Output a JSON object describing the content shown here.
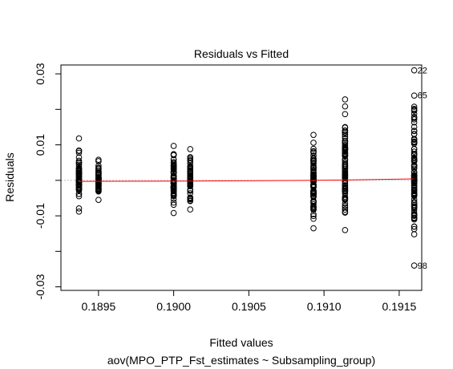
{
  "chart_data": {
    "type": "scatter",
    "title": "Residuals vs Fitted",
    "xlabel": "Fitted values",
    "subtitle": "aov(MPO_PTP_Fst_estimates ~ Subsampling_group)",
    "ylabel": "Residuals",
    "xlim": [
      0.18925,
      0.19165
    ],
    "ylim": [
      -0.031,
      0.0325
    ],
    "xticks": [
      {
        "value": 0.1895,
        "label": "0.1895"
      },
      {
        "value": 0.19,
        "label": "0.1900"
      },
      {
        "value": 0.1905,
        "label": "0.1905"
      },
      {
        "value": 0.191,
        "label": "0.1910"
      },
      {
        "value": 0.1915,
        "label": "0.1915"
      }
    ],
    "yticks": [
      {
        "value": -0.03,
        "label": "-0.03"
      },
      {
        "value": -0.02,
        "label": ""
      },
      {
        "value": -0.01,
        "label": "-0.01"
      },
      {
        "value": 0.0,
        "label": ""
      },
      {
        "value": 0.01,
        "label": "0.01"
      },
      {
        "value": 0.02,
        "label": ""
      },
      {
        "value": 0.03,
        "label": "0.03"
      }
    ],
    "groups": [
      {
        "fitted": 0.18937,
        "min": -0.0088,
        "max": 0.0118,
        "n": 70,
        "seed": 11
      },
      {
        "fitted": 0.1895,
        "min": -0.0055,
        "max": 0.0058,
        "n": 70,
        "seed": 23
      },
      {
        "fitted": 0.19,
        "min": -0.0092,
        "max": 0.0097,
        "n": 80,
        "seed": 37
      },
      {
        "fitted": 0.19011,
        "min": -0.0082,
        "max": 0.0088,
        "n": 80,
        "seed": 41
      },
      {
        "fitted": 0.19093,
        "min": -0.0135,
        "max": 0.0128,
        "n": 90,
        "seed": 53
      },
      {
        "fitted": 0.19114,
        "min": -0.014,
        "max": 0.0228,
        "n": 90,
        "seed": 67
      },
      {
        "fitted": 0.1916,
        "min": -0.024,
        "max": 0.031,
        "n": 100,
        "seed": 79
      }
    ],
    "labeled_points": [
      {
        "x": 0.1916,
        "y": 0.031,
        "label": "22"
      },
      {
        "x": 0.1916,
        "y": 0.024,
        "label": "65"
      },
      {
        "x": 0.1916,
        "y": -0.024,
        "label": "98"
      }
    ],
    "smoother": [
      [
        0.18937,
        -0.0003
      ],
      [
        0.19011,
        -0.0002
      ],
      [
        0.19093,
        0.0
      ],
      [
        0.19114,
        0.0001
      ],
      [
        0.1916,
        0.0004
      ]
    ],
    "zero_line": 0.0,
    "colors": {
      "points": "#000000",
      "smoother": "#ff0000",
      "zero_line": "#bfbfbf"
    },
    "grid": false
  }
}
